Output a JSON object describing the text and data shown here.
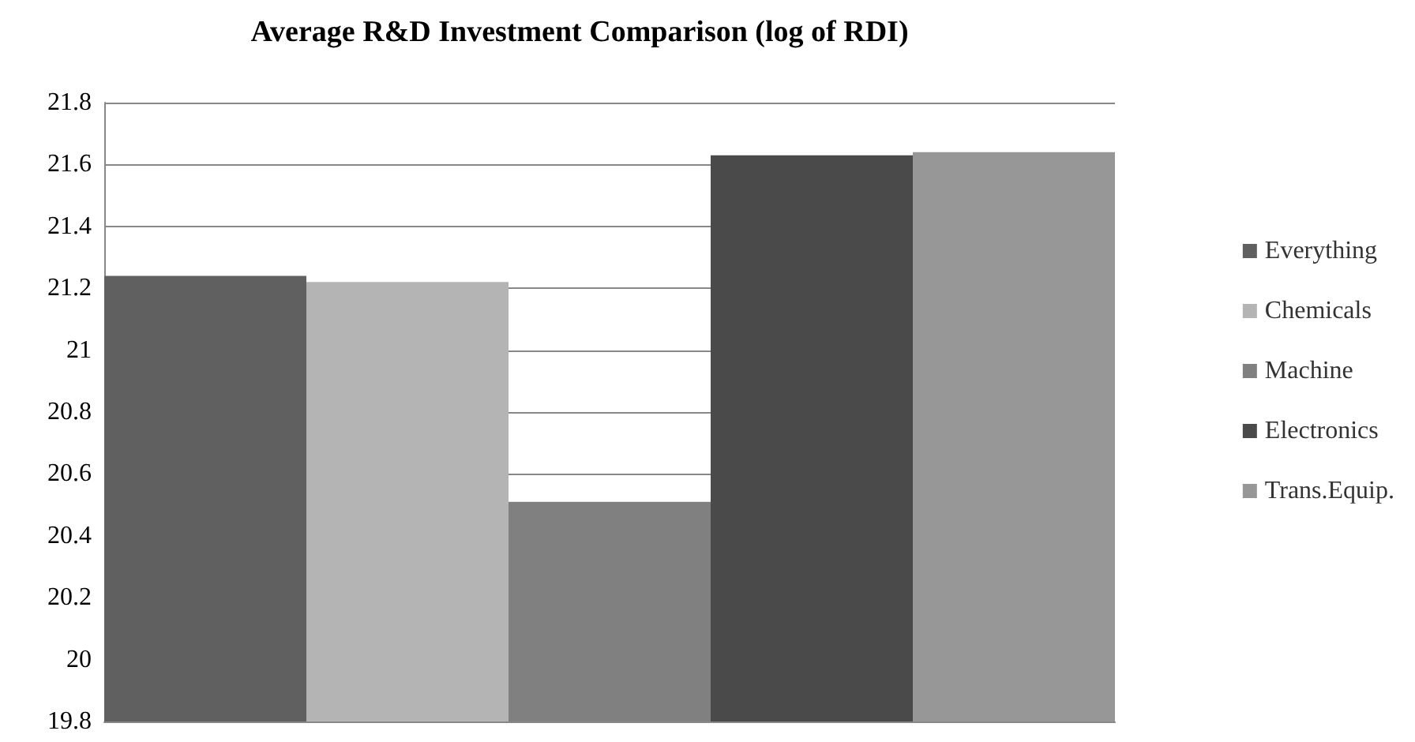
{
  "chart_data": {
    "type": "bar",
    "title": "Average R&D Investment Comparison (log of RDI)",
    "categories": [
      null
    ],
    "series": [
      {
        "name": "Everything",
        "color": "#606060",
        "values": [
          21.24
        ]
      },
      {
        "name": "Chemicals",
        "color": "#b4b4b4",
        "values": [
          21.22
        ]
      },
      {
        "name": "Machine",
        "color": "#808080",
        "values": [
          20.51
        ]
      },
      {
        "name": "Electronics",
        "color": "#4a4a4a",
        "values": [
          21.63
        ]
      },
      {
        "name": "Trans.Equip.",
        "color": "#979797",
        "values": [
          21.64
        ]
      }
    ],
    "ylim": [
      19.8,
      21.8
    ],
    "yticks": [
      19.8,
      20,
      20.2,
      20.4,
      20.6,
      20.8,
      21,
      21.2,
      21.4,
      21.6,
      21.8
    ],
    "grid": "y",
    "legend": "right"
  }
}
